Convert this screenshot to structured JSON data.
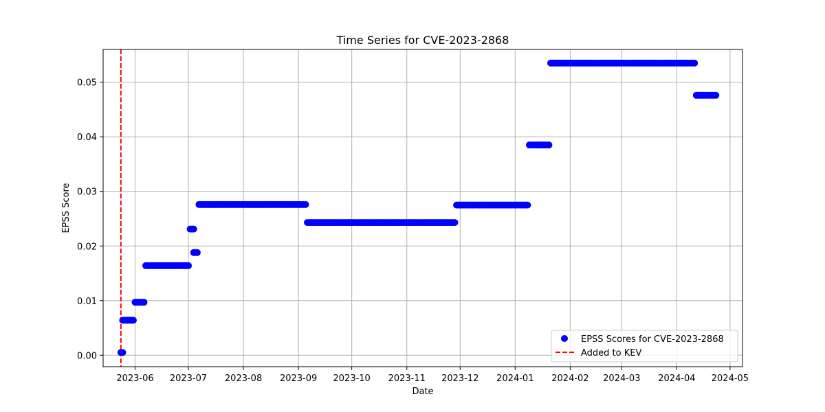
{
  "chart_data": {
    "type": "scatter",
    "title": "Time Series for CVE-2023-2868",
    "xlabel": "Date",
    "ylabel": "EPSS Score",
    "xlim": [
      "2023-05-14",
      "2024-05-08"
    ],
    "ylim": [
      -0.0021,
      0.056
    ],
    "grid": true,
    "x_ticks": [
      "2023-06-01",
      "2023-07-01",
      "2023-08-01",
      "2023-09-01",
      "2023-10-01",
      "2023-11-01",
      "2023-12-01",
      "2024-01-01",
      "2024-02-01",
      "2024-03-01",
      "2024-04-01",
      "2024-05-01"
    ],
    "x_tick_labels": [
      "2023-06",
      "2023-07",
      "2023-08",
      "2023-09",
      "2023-10",
      "2023-11",
      "2023-12",
      "2024-01",
      "2024-02",
      "2024-03",
      "2024-04",
      "2024-05"
    ],
    "y_ticks": [
      0.0,
      0.01,
      0.02,
      0.03,
      0.04,
      0.05
    ],
    "y_tick_labels": [
      "0.00",
      "0.01",
      "0.02",
      "0.03",
      "0.04",
      "0.05"
    ],
    "series": [
      {
        "name": "EPSS Scores for CVE-2023-2868",
        "kind": "scatter",
        "color": "#0000ff",
        "segments": [
          {
            "start": "2023-05-24",
            "end": "2023-05-25",
            "value": 0.0005
          },
          {
            "start": "2023-05-25",
            "end": "2023-05-31",
            "value": 0.0064
          },
          {
            "start": "2023-06-01",
            "end": "2023-06-06",
            "value": 0.0097
          },
          {
            "start": "2023-06-07",
            "end": "2023-07-01",
            "value": 0.0164
          },
          {
            "start": "2023-07-02",
            "end": "2023-07-04",
            "value": 0.0231
          },
          {
            "start": "2023-07-04",
            "end": "2023-07-06",
            "value": 0.0188
          },
          {
            "start": "2023-07-07",
            "end": "2023-09-05",
            "value": 0.0276
          },
          {
            "start": "2023-09-06",
            "end": "2023-11-28",
            "value": 0.0243
          },
          {
            "start": "2023-11-29",
            "end": "2024-01-08",
            "value": 0.0275
          },
          {
            "start": "2024-01-09",
            "end": "2024-01-20",
            "value": 0.0385
          },
          {
            "start": "2024-01-21",
            "end": "2024-04-11",
            "value": 0.0535
          },
          {
            "start": "2024-04-12",
            "end": "2024-04-23",
            "value": 0.0476
          }
        ]
      },
      {
        "name": "Added to KEV",
        "kind": "vline",
        "color": "#ff0000",
        "style": "dashed",
        "x": "2023-05-24"
      }
    ],
    "legend": {
      "position": "lower-right",
      "entries": [
        "EPSS Scores for CVE-2023-2868",
        "Added to KEV"
      ]
    }
  }
}
